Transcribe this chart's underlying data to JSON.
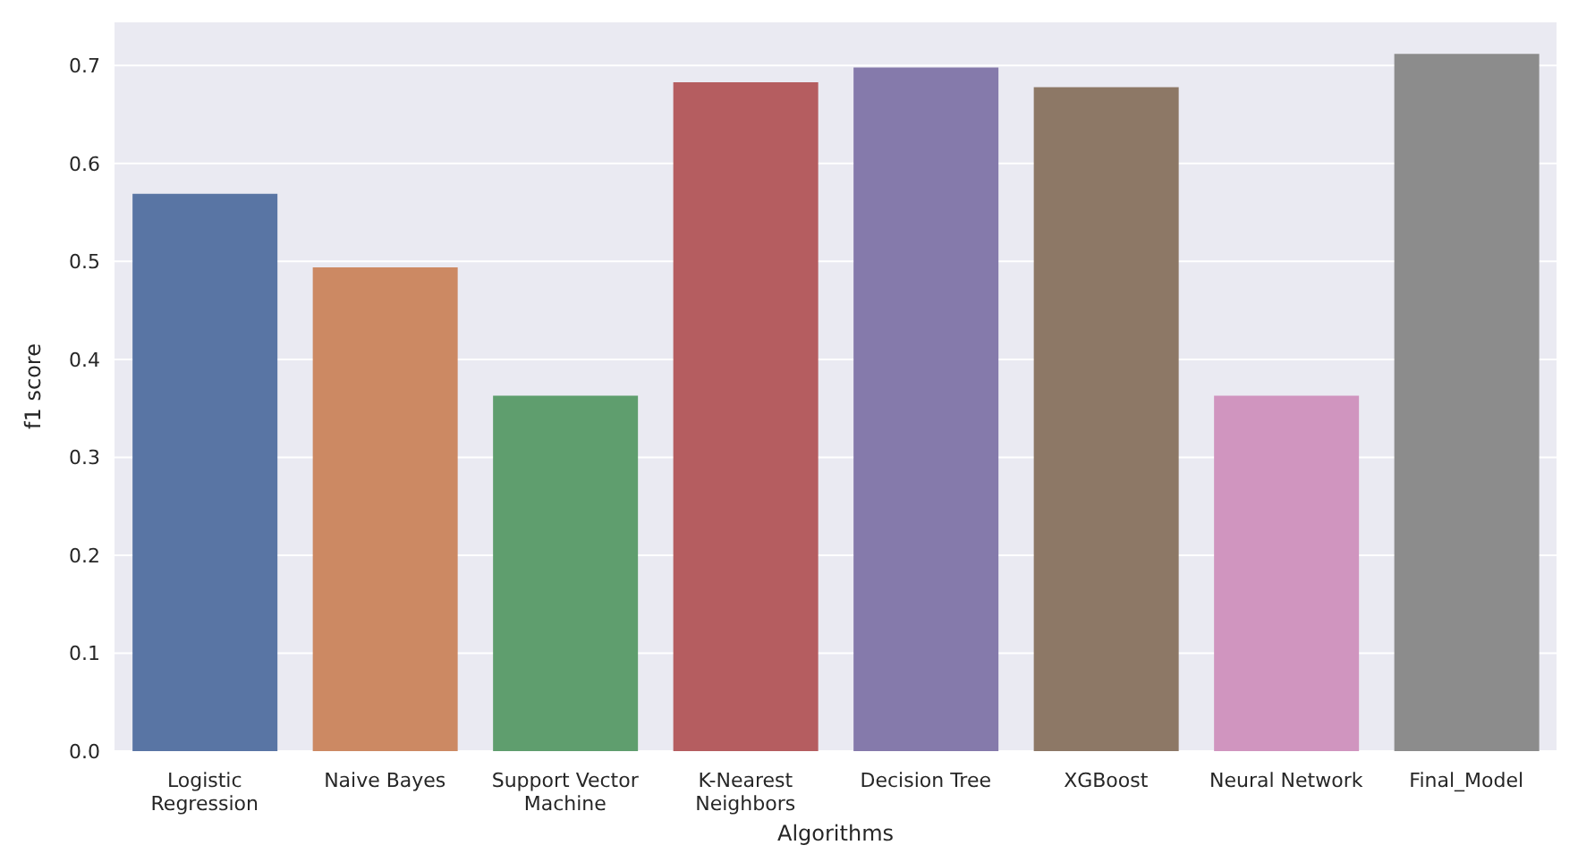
{
  "chart_data": {
    "type": "bar",
    "xlabel": "Algorithms",
    "ylabel": "f1 score",
    "categories": [
      "Logistic Regression",
      "Naive Bayes",
      "Support Vector Machine",
      "K-Nearest Neighbors",
      "Decision Tree",
      "XGBoost",
      "Neural Network",
      "Final_Model"
    ],
    "values": [
      0.569,
      0.494,
      0.363,
      0.683,
      0.698,
      0.678,
      0.363,
      0.712
    ],
    "colors": [
      "#5975a4",
      "#cc8963",
      "#5f9e6e",
      "#b55d60",
      "#857aab",
      "#8d7866",
      "#d095bf",
      "#8c8c8c"
    ],
    "ylim": [
      0,
      0.745
    ],
    "yticks": [
      {
        "value": 0,
        "label": "0.0"
      },
      0.1,
      0.2,
      0.3,
      0.4,
      0.5,
      0.6,
      0.7
    ],
    "grid": "y"
  }
}
